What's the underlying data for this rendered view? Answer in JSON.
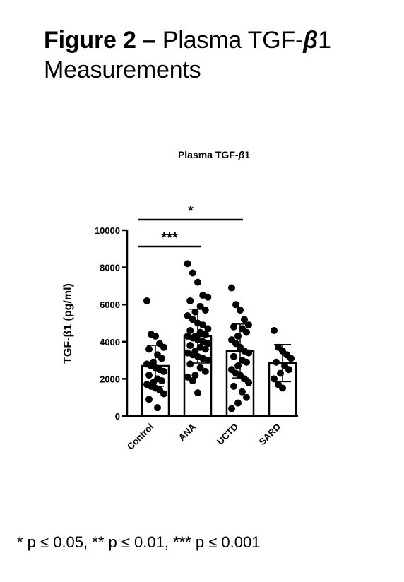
{
  "figure": {
    "title_bold": "Figure 2 –",
    "title_rest": " Plasma TGF-",
    "title_beta": "β",
    "title_end": "1",
    "title_line2": "Measurements"
  },
  "footnote": "* p ≤ 0.05, ** p ≤ 0.01, *** p ≤ 0.001",
  "chart_data": {
    "type": "bar",
    "title_main": "Plasma TGF-",
    "title_beta": "β",
    "title_end": "1",
    "ylabel": "TGF-β1 (pg/ml)",
    "categories": [
      "Control",
      "ANA",
      "UCTD",
      "SARD"
    ],
    "means": [
      2700,
      4300,
      3500,
      2850
    ],
    "sd": [
      1100,
      1450,
      1450,
      1000
    ],
    "ylim": [
      0,
      10000
    ],
    "yticks": [
      0,
      2000,
      4000,
      6000,
      8000,
      10000
    ],
    "points": [
      [
        6200,
        4400,
        4300,
        3900,
        3700,
        3600,
        3300,
        3100,
        2900,
        2800,
        2700,
        2600,
        2500,
        2400,
        2200,
        2000,
        1900,
        1800,
        1700,
        1600,
        1500,
        1400,
        1200,
        900,
        450
      ],
      [
        8200,
        7700,
        7200,
        6500,
        6400,
        6200,
        5900,
        5700,
        5600,
        5400,
        5200,
        5000,
        4900,
        4700,
        4600,
        4500,
        4400,
        4300,
        4300,
        4200,
        4100,
        4000,
        3900,
        3800,
        3700,
        3600,
        3500,
        3400,
        3300,
        3200,
        3100,
        3000,
        2800,
        2600,
        2400,
        2200,
        2100,
        1900,
        1250
      ],
      [
        6900,
        6000,
        5700,
        5200,
        4900,
        4800,
        4700,
        4500,
        4300,
        4100,
        3900,
        3700,
        3500,
        3400,
        3200,
        3000,
        2900,
        2700,
        2500,
        2300,
        2200,
        2000,
        1800,
        1600,
        1300,
        1000,
        700,
        400
      ],
      [
        4600,
        3700,
        3500,
        3300,
        3100,
        2900,
        2700,
        2500,
        2300,
        2000,
        1700,
        1500
      ]
    ],
    "significance": [
      {
        "from": "Control",
        "to": "ANA",
        "label": "***"
      },
      {
        "from": "Control",
        "to": "UCTD",
        "label": "*"
      }
    ],
    "grid": false,
    "legend": "none"
  }
}
